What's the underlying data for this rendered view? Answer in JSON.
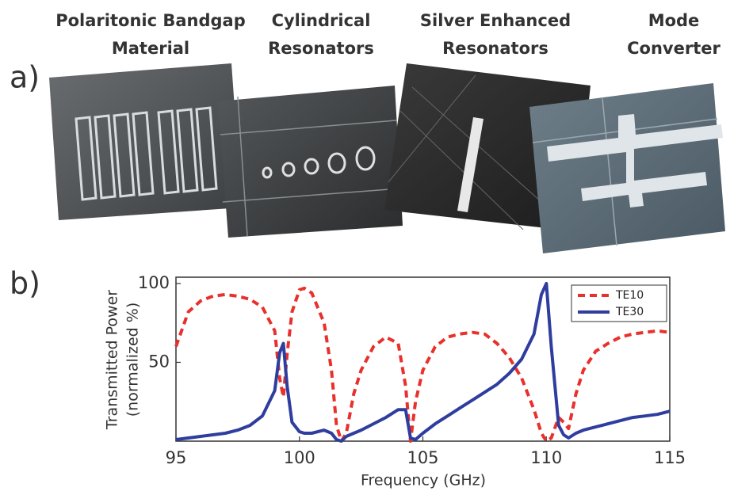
{
  "panels": {
    "a": "a)",
    "b": "b)"
  },
  "captions": [
    [
      "Polaritonic Bandgap",
      "Material"
    ],
    [
      "Cylindrical",
      "Resonators"
    ],
    [
      "Silver Enhanced",
      "Resonators"
    ],
    [
      "Mode",
      "Converter"
    ]
  ],
  "chart_data": {
    "type": "line",
    "xlabel": "Frequency (GHz)",
    "ylabel": [
      "Transmitted Power",
      "(normalized %)"
    ],
    "x": [
      95,
      95.5,
      96,
      96.5,
      97,
      97.5,
      98,
      98.5,
      99,
      99.2,
      99.35,
      99.5,
      99.7,
      100,
      100.2,
      100.5,
      101,
      101.3,
      101.5,
      101.7,
      101.9,
      102.2,
      102.5,
      103,
      103.5,
      104,
      104.3,
      104.5,
      104.7,
      105,
      105.5,
      106,
      106.5,
      107,
      107.5,
      108,
      108.5,
      109,
      109.5,
      109.8,
      110,
      110.2,
      110.5,
      110.7,
      110.9,
      111.2,
      111.5,
      112,
      112.5,
      113,
      113.5,
      114,
      114.5,
      115
    ],
    "series": [
      {
        "name": "TE10",
        "color": "#e8312c",
        "dash": true,
        "values": [
          60,
          82,
          89,
          92,
          93,
          92,
          90,
          85,
          70,
          40,
          28,
          55,
          82,
          96,
          97,
          94,
          75,
          45,
          10,
          0,
          5,
          30,
          45,
          60,
          66,
          62,
          35,
          0,
          25,
          45,
          60,
          66,
          68,
          69,
          68,
          62,
          53,
          40,
          20,
          5,
          0,
          2,
          15,
          12,
          8,
          30,
          45,
          57,
          62,
          66,
          68,
          69,
          70,
          69
        ]
      },
      {
        "name": "TE30",
        "color": "#2e3d9e",
        "dash": false,
        "values": [
          1,
          2,
          3,
          4,
          5,
          7,
          10,
          16,
          32,
          56,
          62,
          35,
          12,
          6,
          5,
          5,
          7,
          5,
          1,
          0,
          3,
          5,
          7,
          11,
          15,
          20,
          20,
          2,
          1,
          5,
          11,
          16,
          21,
          26,
          31,
          36,
          43,
          52,
          68,
          93,
          100,
          60,
          10,
          4,
          2,
          5,
          7,
          9,
          11,
          13,
          15,
          16,
          17,
          19
        ]
      }
    ],
    "xlim": [
      95,
      115
    ],
    "ylim": [
      0,
      104
    ],
    "xticks": [
      95,
      100,
      105,
      110,
      115
    ],
    "yticks": [
      50,
      100
    ],
    "legend": "upper right"
  }
}
